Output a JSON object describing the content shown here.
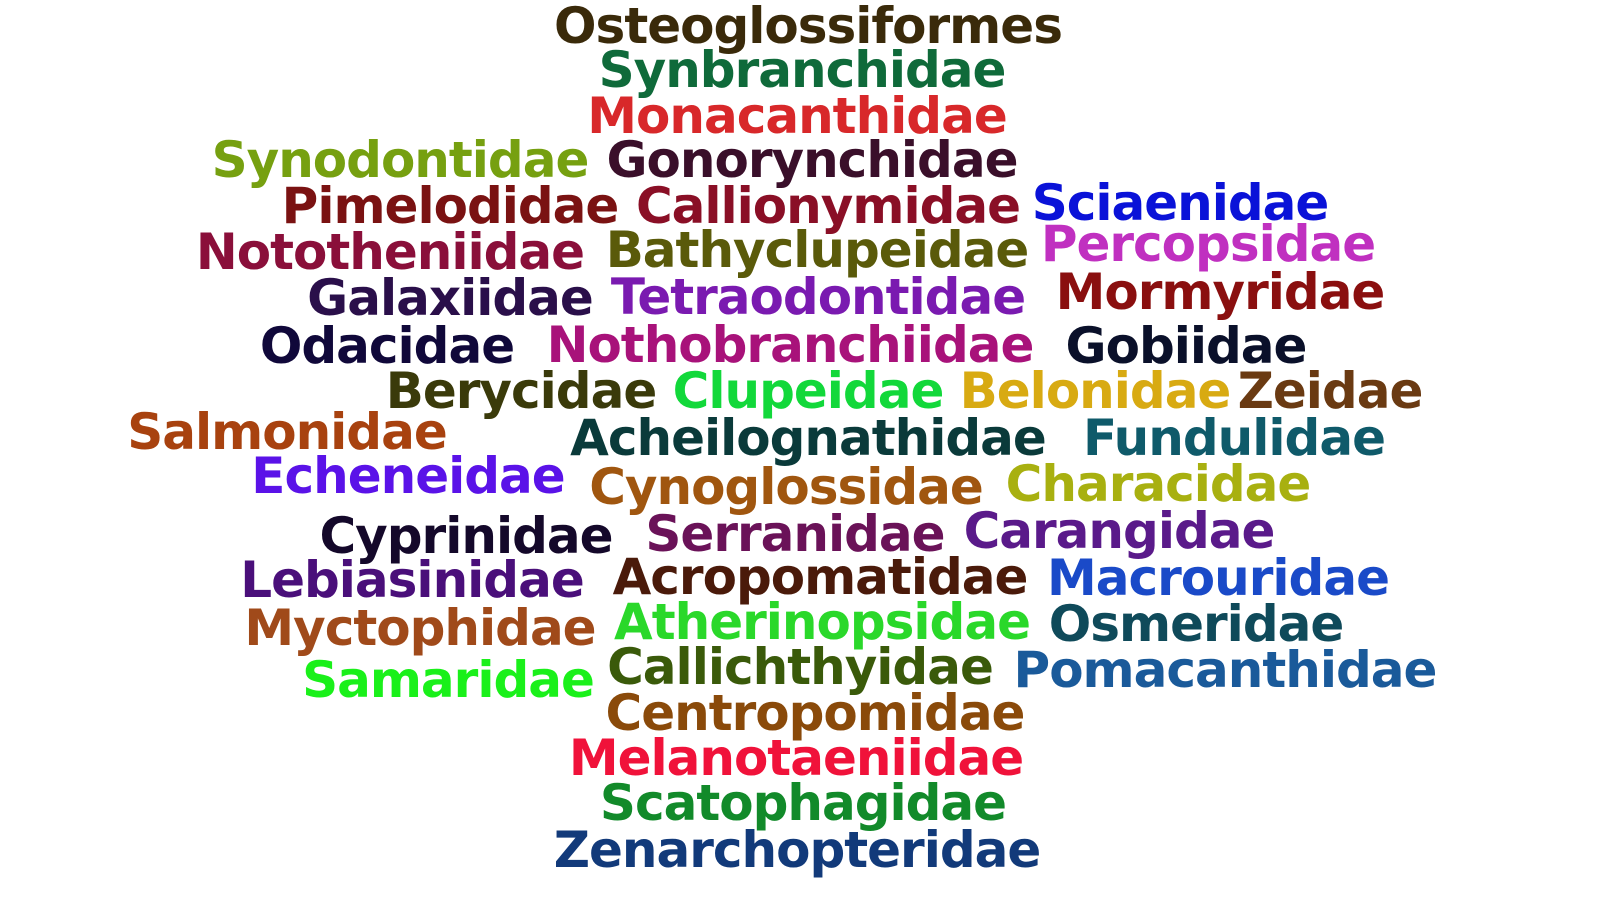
{
  "words": [
    {
      "text": "Osteoglossiformes",
      "color": "#3a2a0a"
    },
    {
      "text": "Synbranchidae",
      "color": "#0f6a3a"
    },
    {
      "text": "Monacanthidae",
      "color": "#d8282a"
    },
    {
      "text": "Synodontidae",
      "color": "#76a010"
    },
    {
      "text": "Gonorynchidae",
      "color": "#3a0f2a"
    },
    {
      "text": "Pimelodidae",
      "color": "#7a1212"
    },
    {
      "text": "Callionymidae",
      "color": "#8a0f26"
    },
    {
      "text": "Sciaenidae",
      "color": "#0a12d8"
    },
    {
      "text": "Nototheniidae",
      "color": "#8a0f3a"
    },
    {
      "text": "Bathyclupeidae",
      "color": "#5a5a0a"
    },
    {
      "text": "Percopsidae",
      "color": "#c030c0"
    },
    {
      "text": "Galaxiidae",
      "color": "#2a0f4a"
    },
    {
      "text": "Tetraodontidae",
      "color": "#7a1ab0"
    },
    {
      "text": "Mormyridae",
      "color": "#8a0f0f"
    },
    {
      "text": "Odacidae",
      "color": "#10083a"
    },
    {
      "text": "Nothobranchiidae",
      "color": "#a8127a"
    },
    {
      "text": "Gobiidae",
      "color": "#0a102a"
    },
    {
      "text": "Berycidae",
      "color": "#3a3a0a"
    },
    {
      "text": "Clupeidae",
      "color": "#12d83a"
    },
    {
      "text": "Belonidae",
      "color": "#d8aa12"
    },
    {
      "text": "Zeidae",
      "color": "#6a3a12"
    },
    {
      "text": "Salmonidae",
      "color": "#a8420f"
    },
    {
      "text": "Acheilognathidae",
      "color": "#0a3a3a"
    },
    {
      "text": "Fundulidae",
      "color": "#0f5a6a"
    },
    {
      "text": "Echeneidae",
      "color": "#5a12e8"
    },
    {
      "text": "Cynoglossidae",
      "color": "#a0560f"
    },
    {
      "text": "Characidae",
      "color": "#a8b010"
    },
    {
      "text": "Cyprinidae",
      "color": "#14082a"
    },
    {
      "text": "Serranidae",
      "color": "#6a1258"
    },
    {
      "text": "Carangidae",
      "color": "#5a1a8a"
    },
    {
      "text": "Lebiasinidae",
      "color": "#4a0f7a"
    },
    {
      "text": "Acropomatidae",
      "color": "#4a1a0a"
    },
    {
      "text": "Macrouridae",
      "color": "#1a4ac8"
    },
    {
      "text": "Myctophidae",
      "color": "#a04a1a"
    },
    {
      "text": "Atherinopsidae",
      "color": "#2ad82a"
    },
    {
      "text": "Osmeridae",
      "color": "#0f4a5a"
    },
    {
      "text": "Samaridae",
      "color": "#1af01a"
    },
    {
      "text": "Callichthyidae",
      "color": "#3a5a0a"
    },
    {
      "text": "Pomacanthidae",
      "color": "#1a5a9a"
    },
    {
      "text": "Centropomidae",
      "color": "#8a4a0a"
    },
    {
      "text": "Melanotaeniidae",
      "color": "#f0123a"
    },
    {
      "text": "Scatophagidae",
      "color": "#128a2a"
    },
    {
      "text": "Zenarchopteridae",
      "color": "#123a7a"
    }
  ]
}
